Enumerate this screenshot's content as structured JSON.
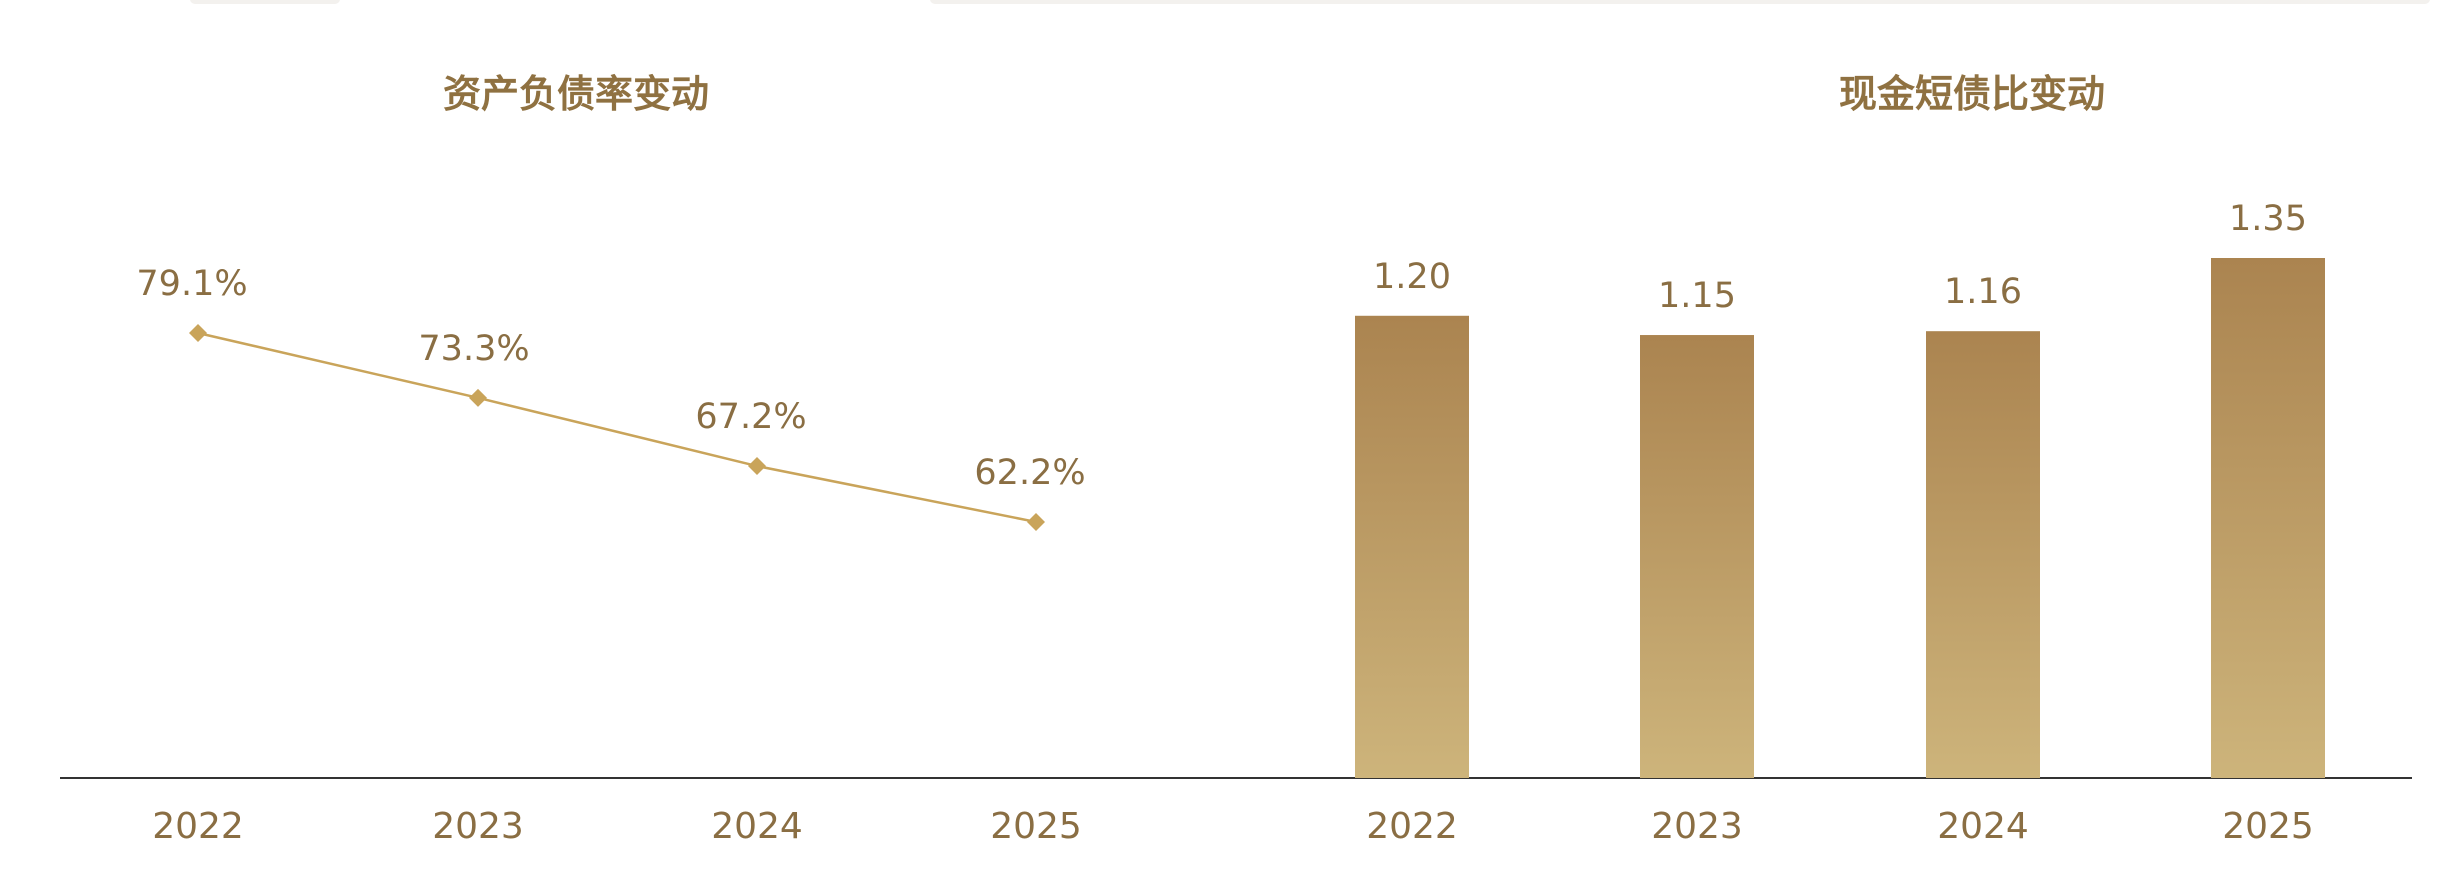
{
  "colors": {
    "title": "#8f7141",
    "label": "#8a6e43",
    "line": "#c9a45a",
    "marker": "#c9a45a",
    "bar_top": "#ab8450",
    "bar_bottom": "#cdb47b",
    "baseline": "#333333"
  },
  "chart_data": [
    {
      "type": "line",
      "title": "资产负债率变动",
      "xlabel": "",
      "ylabel": "",
      "categories": [
        "2022",
        "2023",
        "2024",
        "2025"
      ],
      "series": [
        {
          "values": [
            79.1,
            73.3,
            67.2,
            62.2
          ],
          "labels": [
            "79.1%",
            "73.3%",
            "67.2%",
            "62.2%"
          ],
          "marker": "diamond"
        }
      ],
      "grid": false,
      "legend": "none"
    },
    {
      "type": "bar",
      "title": "现金短债比变动",
      "xlabel": "",
      "ylabel": "",
      "categories": [
        "2022",
        "2023",
        "2024",
        "2025"
      ],
      "values": [
        1.2,
        1.15,
        1.16,
        1.35
      ],
      "labels": [
        "1.20",
        "1.15",
        "1.16",
        "1.35"
      ],
      "ylim": [
        0,
        1.55
      ],
      "grid": false,
      "legend": "none"
    }
  ]
}
